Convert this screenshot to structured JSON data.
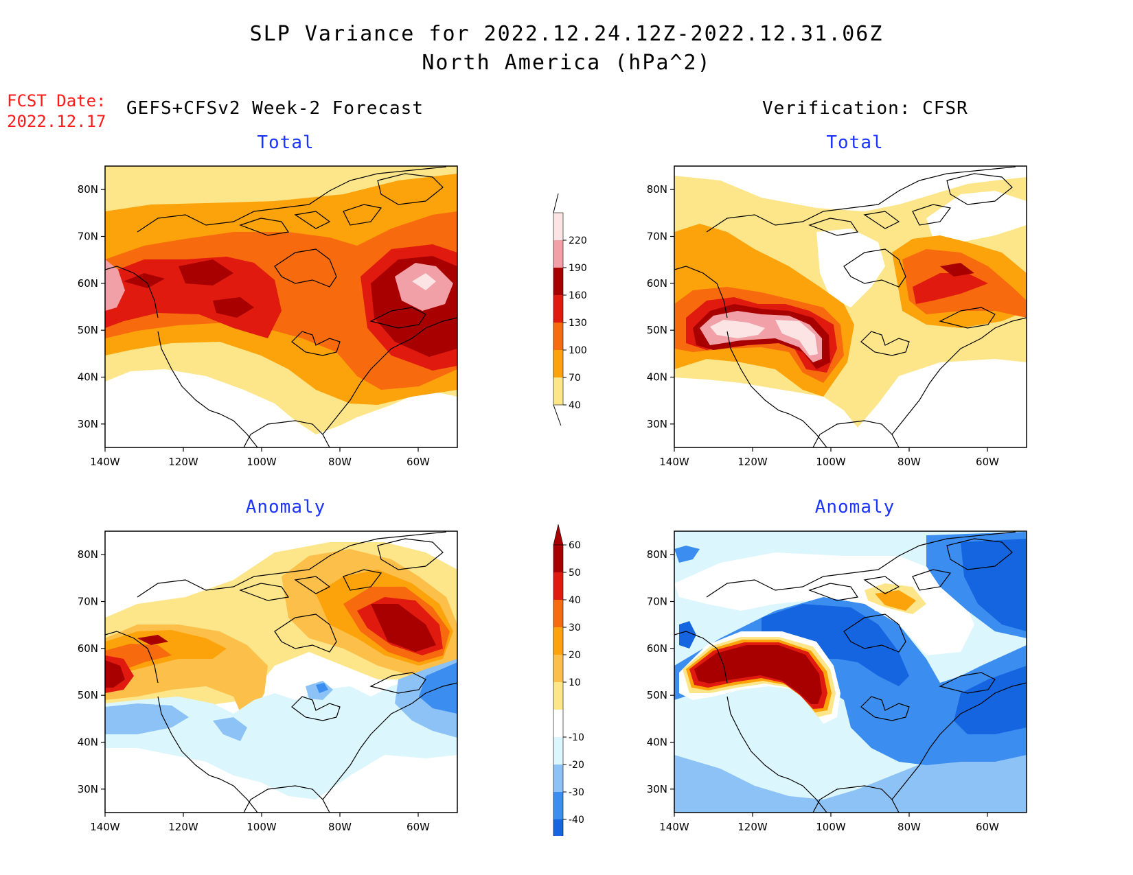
{
  "header": {
    "title_line1": "SLP Variance for 2022.12.24.12Z-2022.12.31.06Z",
    "title_line2": "North America (hPa^2)",
    "fcst_date_label": "FCST Date:",
    "fcst_date_value": "2022.12.17",
    "forecast_label": "GEFS+CFSv2 Week-2 Forecast",
    "verification_label": "Verification: CFSR"
  },
  "panels": {
    "forecast_total_title": "Total",
    "verif_total_title": "Total",
    "forecast_anom_title": "Anomaly",
    "verif_anom_title": "Anomaly"
  },
  "axes": {
    "lat_ticks": [
      "80N",
      "70N",
      "60N",
      "50N",
      "40N",
      "30N"
    ],
    "lon_ticks": [
      "140W",
      "120W",
      "100W",
      "80W",
      "60W"
    ],
    "lat_values": [
      80,
      70,
      60,
      50,
      40,
      30
    ],
    "lon_values": [
      -140,
      -120,
      -100,
      -80,
      -60
    ],
    "lat_range": [
      25,
      85
    ],
    "lon_range": [
      -140,
      -50
    ]
  },
  "colorbar_total": {
    "labels": [
      "40",
      "70",
      "100",
      "130",
      "160",
      "190",
      "220"
    ],
    "colors": [
      "#fde68a",
      "#fca20a",
      "#f76a0e",
      "#e01a0e",
      "#a80000",
      "#f2a0a8",
      "#fde4e4"
    ]
  },
  "colorbar_anomaly": {
    "labels": [
      "-40",
      "-30",
      "-20",
      "-10",
      "10",
      "20",
      "30",
      "40",
      "50",
      "60"
    ],
    "colors_neg": [
      "#1565e0",
      "#3b8ef0",
      "#8cc2f5",
      "#dcf6fd"
    ],
    "colors_pos": [
      "#fde68a",
      "#fcc04a",
      "#fca20a",
      "#f76a0e",
      "#e01a0e",
      "#a80000"
    ],
    "neutral": "#ffffff"
  }
}
